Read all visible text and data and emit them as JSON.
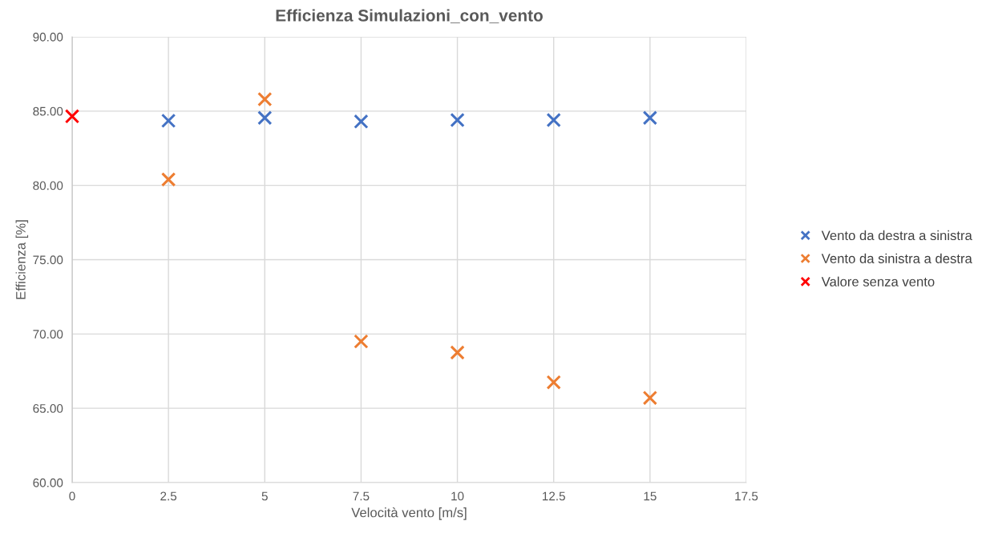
{
  "chart_data": {
    "type": "scatter",
    "title": "Efficienza Simulazioni_con_vento",
    "xlabel": "Velocità vento [m/s]",
    "ylabel": "Efficienza [%]",
    "series": [
      {
        "name": "Vento da destra a sinistra",
        "color": "#4472c4",
        "x": [
          2.5,
          5,
          7.5,
          10,
          12.5,
          15
        ],
        "values": [
          84.35,
          84.55,
          84.3,
          84.4,
          84.4,
          84.55
        ]
      },
      {
        "name": "Vento da sinistra a destra",
        "color": "#ed7d31",
        "x": [
          2.5,
          5,
          7.5,
          10,
          12.5,
          15
        ],
        "values": [
          80.4,
          85.8,
          69.5,
          68.75,
          66.75,
          65.7
        ]
      },
      {
        "name": "Valore senza vento",
        "color": "#ff0000",
        "x": [
          0
        ],
        "values": [
          84.65
        ]
      }
    ],
    "xlim": [
      0,
      17.5
    ],
    "xticks": [
      0,
      2.5,
      5,
      7.5,
      10,
      12.5,
      15,
      17.5
    ],
    "ylim": [
      60,
      90
    ],
    "yticks": [
      {
        "value": 60,
        "label": "60.00"
      },
      {
        "value": 65,
        "label": "65.00"
      },
      {
        "value": 70,
        "label": "70.00"
      },
      {
        "value": 75,
        "label": "75.00"
      },
      {
        "value": 80,
        "label": "80.00"
      },
      {
        "value": 85,
        "label": "85.00"
      },
      {
        "value": 90,
        "label": "90.00"
      }
    ],
    "grid": true,
    "legend": "right",
    "marker": "cross"
  }
}
